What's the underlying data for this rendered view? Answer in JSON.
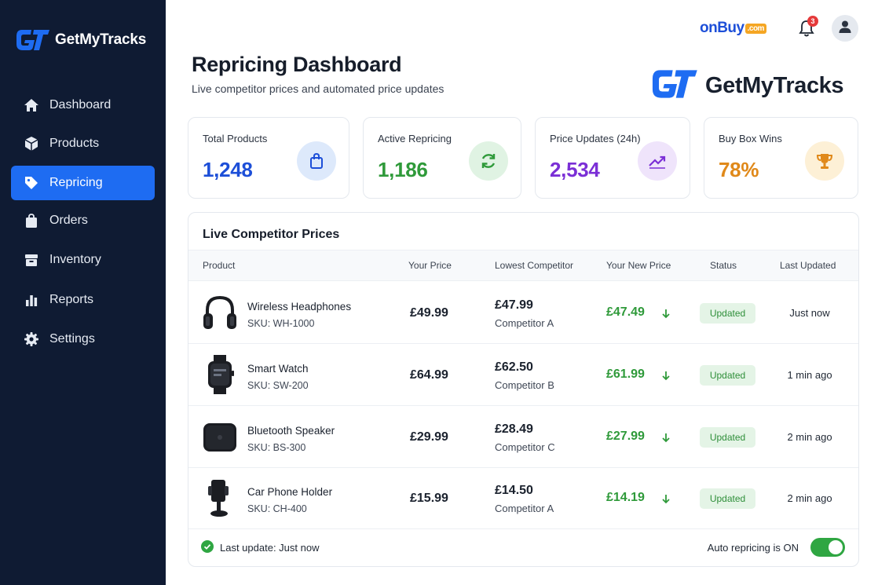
{
  "app": {
    "brand": "GetMyTracks"
  },
  "sidebar": {
    "items": [
      {
        "label": "Dashboard",
        "icon": "home-icon"
      },
      {
        "label": "Products",
        "icon": "cube-icon"
      },
      {
        "label": "Repricing",
        "icon": "tag-icon",
        "active": true
      },
      {
        "label": "Orders",
        "icon": "shopping-bag-icon"
      },
      {
        "label": "Inventory",
        "icon": "box-icon"
      },
      {
        "label": "Reports",
        "icon": "bar-chart-icon"
      },
      {
        "label": "Settings",
        "icon": "gear-icon"
      }
    ]
  },
  "topbar": {
    "marketplace": {
      "name": "onBuy",
      "suffix": ".com"
    },
    "notifications": {
      "count": "3"
    }
  },
  "header": {
    "title": "Repricing Dashboard",
    "subtitle": "Live competitor prices and automated price updates"
  },
  "stats": [
    {
      "label": "Total Products",
      "value": "1,248",
      "color": "#1d4fd8",
      "icon": "shopping-bag-icon"
    },
    {
      "label": "Active Repricing",
      "value": "1,186",
      "color": "#2f9a3a",
      "icon": "refresh-icon"
    },
    {
      "label": "Price Updates (24h)",
      "value": "2,534",
      "color": "#7b2fd6",
      "icon": "trend-up-icon"
    },
    {
      "label": "Buy Box Wins",
      "value": "78%",
      "color": "#e0891a",
      "icon": "trophy-icon"
    }
  ],
  "table": {
    "title": "Live Competitor Prices",
    "columns": [
      "Product",
      "Your Price",
      "Lowest Competitor",
      "Your New Price",
      "Status",
      "Last Updated"
    ],
    "rows": [
      {
        "name": "Wireless Headphones",
        "sku": "SKU: WH-1000",
        "your_price": "£49.99",
        "lowest_price": "£47.99",
        "competitor": "Competitor A",
        "new_price": "£47.49",
        "status": "Updated",
        "last_updated": "Just now",
        "image": "headphones-icon"
      },
      {
        "name": "Smart Watch",
        "sku": "SKU: SW-200",
        "your_price": "£64.99",
        "lowest_price": "£62.50",
        "competitor": "Competitor B",
        "new_price": "£61.99",
        "status": "Updated",
        "last_updated": "1 min ago",
        "image": "smartwatch-icon"
      },
      {
        "name": "Bluetooth Speaker",
        "sku": "SKU: BS-300",
        "your_price": "£29.99",
        "lowest_price": "£28.49",
        "competitor": "Competitor C",
        "new_price": "£27.99",
        "status": "Updated",
        "last_updated": "2 min ago",
        "image": "speaker-icon"
      },
      {
        "name": "Car Phone Holder",
        "sku": "SKU: CH-400",
        "your_price": "£15.99",
        "lowest_price": "£14.50",
        "competitor": "Competitor A",
        "new_price": "£14.19",
        "status": "Updated",
        "last_updated": "2 min ago",
        "image": "phone-holder-icon"
      }
    ]
  },
  "footer": {
    "last_update": "Last update: Just now",
    "auto_repricing_prefix": "Auto repricing is ",
    "auto_repricing_state": "ON",
    "toggle_on": true
  }
}
